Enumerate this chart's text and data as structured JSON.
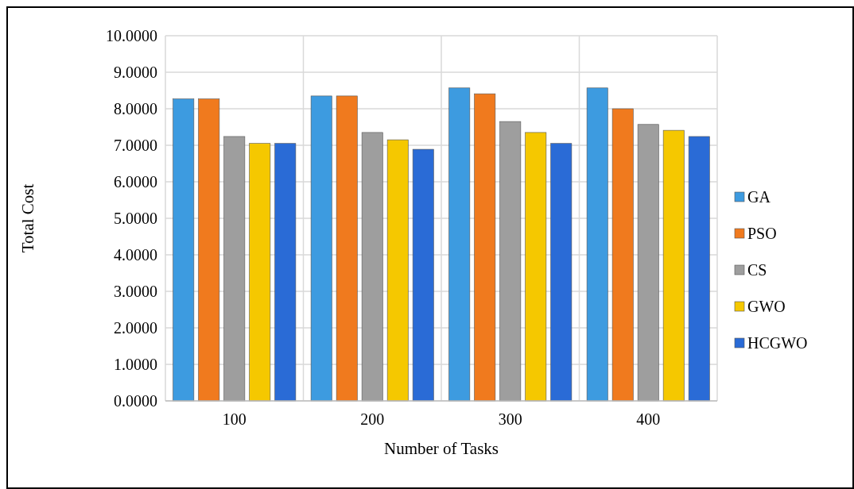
{
  "chart_data": {
    "type": "bar",
    "xlabel": "Number of Tasks",
    "ylabel": "Total Cost",
    "categories": [
      "100",
      "200",
      "300",
      "400"
    ],
    "series": [
      {
        "name": "GA",
        "color": "#3d9be0",
        "values": [
          8.27,
          8.35,
          8.57,
          8.57
        ]
      },
      {
        "name": "PSO",
        "color": "#f07a1e",
        "values": [
          8.27,
          8.35,
          8.41,
          8.0
        ]
      },
      {
        "name": "CS",
        "color": "#9e9e9e",
        "values": [
          7.24,
          7.35,
          7.65,
          7.57
        ]
      },
      {
        "name": "GWO",
        "color": "#f5c800",
        "values": [
          7.05,
          7.15,
          7.35,
          7.41
        ]
      },
      {
        "name": "HCGWO",
        "color": "#2a6bd6",
        "values": [
          7.05,
          6.89,
          7.05,
          7.24
        ]
      }
    ],
    "ylim": [
      0,
      10
    ],
    "yticks": [
      {
        "value": 0,
        "label": "0.0000"
      },
      {
        "value": 1,
        "label": "1.0000"
      },
      {
        "value": 2,
        "label": "2.0000"
      },
      {
        "value": 3,
        "label": "3.0000"
      },
      {
        "value": 4,
        "label": "4.0000"
      },
      {
        "value": 5,
        "label": "5.0000"
      },
      {
        "value": 6,
        "label": "6.0000"
      },
      {
        "value": 7,
        "label": "7.0000"
      },
      {
        "value": 8,
        "label": "8.0000"
      },
      {
        "value": 9,
        "label": "9.0000"
      },
      {
        "value": 10,
        "label": "10.0000"
      }
    ],
    "grid": true,
    "legend": "right"
  }
}
